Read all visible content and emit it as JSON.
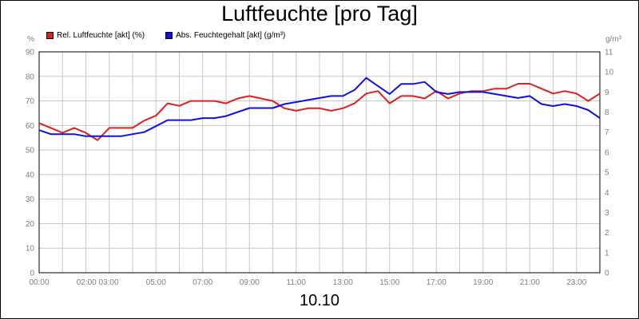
{
  "title": "Luftfeuchte [pro Tag]",
  "date_label": "10.10",
  "chart_data": {
    "type": "line",
    "title": "Luftfeuchte [pro Tag]",
    "xlabel": "10.10",
    "x_tick_labels": [
      "00:00",
      "02:00 03:00",
      "05:00",
      "07:00",
      "09:00",
      "11:00",
      "13:00",
      "15:00",
      "17:00",
      "19:00",
      "21:00",
      "23:00"
    ],
    "x_tick_hours": [
      0,
      2.5,
      5,
      7,
      9,
      11,
      13,
      15,
      17,
      19,
      21,
      23
    ],
    "xlim": [
      0,
      24
    ],
    "left_axis": {
      "unit": "%",
      "ylim": [
        0,
        90
      ],
      "ticks": [
        0,
        10,
        20,
        30,
        40,
        50,
        60,
        70,
        80,
        90
      ]
    },
    "right_axis": {
      "unit": "g/m³",
      "ylim": [
        0,
        11
      ],
      "ticks": [
        0,
        1,
        2,
        3,
        4,
        5,
        6,
        7,
        8,
        9,
        10,
        11
      ]
    },
    "grid": true,
    "legend_position": "top-left",
    "series": [
      {
        "name": "Rel. Luftfeuchte [akt] (%)",
        "axis": "left",
        "color": "#e02020",
        "x": [
          0,
          0.5,
          1,
          1.5,
          2,
          2.5,
          3,
          3.5,
          4,
          4.5,
          5,
          5.5,
          6,
          6.5,
          7,
          7.5,
          8,
          8.5,
          9,
          9.5,
          10,
          10.5,
          11,
          11.5,
          12,
          12.5,
          13,
          13.5,
          14,
          14.5,
          15,
          15.5,
          16,
          16.5,
          17,
          17.5,
          18,
          18.5,
          19,
          19.5,
          20,
          20.5,
          21,
          21.5,
          22,
          22.5,
          23,
          23.5,
          24
        ],
        "values": [
          61,
          59,
          57,
          59,
          57,
          54,
          59,
          59,
          59,
          62,
          64,
          69,
          68,
          70,
          70,
          70,
          69,
          71,
          72,
          71,
          70,
          67,
          66,
          67,
          67,
          66,
          67,
          69,
          73,
          74,
          69,
          72,
          72,
          71,
          74,
          71,
          73,
          74,
          74,
          75,
          75,
          77,
          77,
          75,
          73,
          74,
          73,
          70,
          73
        ]
      },
      {
        "name": "Abs. Feuchtegehalt [akt] (g/m³)",
        "axis": "right",
        "color": "#1010e0",
        "x": [
          0,
          0.5,
          1,
          1.5,
          2,
          2.5,
          3,
          3.5,
          4,
          4.5,
          5,
          5.5,
          6,
          6.5,
          7,
          7.5,
          8,
          8.5,
          9,
          9.5,
          10,
          10.5,
          11,
          11.5,
          12,
          12.5,
          13,
          13.5,
          14,
          14.5,
          15,
          15.5,
          16,
          16.5,
          17,
          17.5,
          18,
          18.5,
          19,
          19.5,
          20,
          20.5,
          21,
          21.5,
          22,
          22.5,
          23,
          23.5,
          24
        ],
        "values": [
          7.1,
          6.9,
          6.9,
          6.9,
          6.8,
          6.8,
          6.8,
          6.8,
          6.9,
          7.0,
          7.3,
          7.6,
          7.6,
          7.6,
          7.7,
          7.7,
          7.8,
          8.0,
          8.2,
          8.2,
          8.2,
          8.4,
          8.5,
          8.6,
          8.7,
          8.8,
          8.8,
          9.1,
          9.7,
          9.3,
          8.9,
          9.4,
          9.4,
          9.5,
          9.0,
          8.9,
          9.0,
          9.0,
          9.0,
          8.9,
          8.8,
          8.7,
          8.8,
          8.4,
          8.3,
          8.4,
          8.3,
          8.1,
          7.7
        ]
      }
    ]
  }
}
